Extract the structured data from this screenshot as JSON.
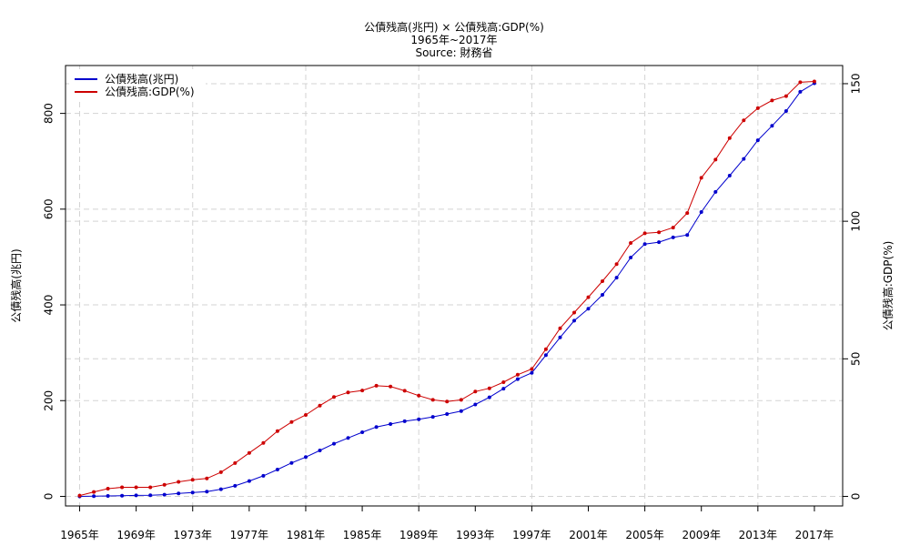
{
  "chart_data": {
    "type": "line",
    "title": "公債残高(兆円) × 公債残高:GDP(%)",
    "subtitle": "1965年~2017年",
    "source": "Source: 財務省",
    "ylabel_left": "公債残高(兆円)",
    "ylabel_right": "公債残高:GDP(%)",
    "xlim": [
      1964,
      2019
    ],
    "ylim_left": [
      -20,
      900
    ],
    "ylim_right": [
      -3.48,
      156.6
    ],
    "x_tick_labels": [
      "1965年",
      "1969年",
      "1973年",
      "1977年",
      "1981年",
      "1985年",
      "1989年",
      "1993年",
      "1997年",
      "2001年",
      "2005年",
      "2009年",
      "2013年",
      "2017年"
    ],
    "x_tick_values": [
      1965,
      1969,
      1973,
      1977,
      1981,
      1985,
      1989,
      1993,
      1997,
      2001,
      2005,
      2009,
      2013,
      2017
    ],
    "left_ticks": [
      0,
      200,
      400,
      600,
      800
    ],
    "left_tick_labels": [
      "0",
      "200",
      "400",
      "600",
      "800"
    ],
    "right_ticks": [
      0,
      50,
      100,
      150
    ],
    "right_tick_labels": [
      "0",
      "50",
      "100",
      "150"
    ],
    "grid": true,
    "legend_position": "top-left",
    "x": [
      1965,
      1966,
      1967,
      1968,
      1969,
      1970,
      1971,
      1972,
      1973,
      1974,
      1975,
      1976,
      1977,
      1978,
      1979,
      1980,
      1981,
      1982,
      1983,
      1984,
      1985,
      1986,
      1987,
      1988,
      1989,
      1990,
      1991,
      1992,
      1993,
      1994,
      1995,
      1996,
      1997,
      1998,
      1999,
      2000,
      2001,
      2002,
      2003,
      2004,
      2005,
      2006,
      2007,
      2008,
      2009,
      2010,
      2011,
      2012,
      2013,
      2014,
      2015,
      2016,
      2017
    ],
    "series": [
      {
        "name": "公債残高(兆円)",
        "axis": "left",
        "color": "#0000cd",
        "values": [
          0,
          0.5,
          1,
          1.5,
          2,
          2.5,
          3.5,
          6,
          8,
          10,
          15,
          22,
          32,
          43,
          56,
          70,
          82,
          96,
          110,
          122,
          134,
          145,
          151,
          157,
          161,
          166,
          172,
          178,
          192,
          207,
          225,
          245,
          258,
          295,
          332,
          367,
          392,
          421,
          457,
          499,
          527,
          531,
          541,
          546,
          594,
          636,
          670,
          705,
          744,
          774,
          805,
          845,
          863
        ]
      },
      {
        "name": "公債残高:GDP(%)",
        "axis": "right",
        "color": "#cd0000",
        "values": [
          0.3,
          1.6,
          2.8,
          3.3,
          3.3,
          3.3,
          4.2,
          5.3,
          6,
          6.5,
          8.8,
          12.1,
          15.8,
          19.4,
          23.7,
          27,
          29.6,
          33,
          36.1,
          37.8,
          38.5,
          40.2,
          39.9,
          38.4,
          36.6,
          35.1,
          34.5,
          35.1,
          38.1,
          39.3,
          41.5,
          44.2,
          46.3,
          53.5,
          61.1,
          66.8,
          72.4,
          78.2,
          84.4,
          92.1,
          95.6,
          96,
          97.7,
          103,
          115.8,
          122.4,
          130.2,
          136.7,
          141.1,
          143.9,
          145.5,
          150.5,
          150.8
        ]
      }
    ]
  }
}
